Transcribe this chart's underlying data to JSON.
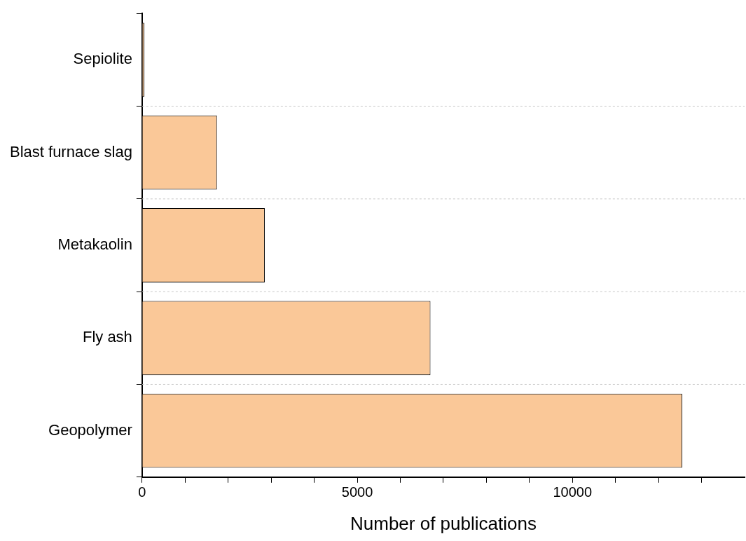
{
  "chart_data": {
    "type": "bar",
    "orientation": "horizontal",
    "xlabel": "Number of publications",
    "categories": [
      "Sepiolite",
      "Blast furnace slag",
      "Metakaolin",
      "Fly ash",
      "Geopolymer"
    ],
    "values": [
      50,
      1740,
      2850,
      6700,
      12550
    ],
    "color": "#fac898",
    "xlim": [
      0,
      14000
    ],
    "xticks": [
      0,
      {
        "value": 1000,
        "label": null
      },
      {
        "value": 2000,
        "label": null
      },
      {
        "value": 3000,
        "label": null
      },
      {
        "value": 4000,
        "label": null
      },
      5000,
      {
        "value": 6000,
        "label": null
      },
      {
        "value": 7000,
        "label": null
      },
      {
        "value": 8000,
        "label": null
      },
      {
        "value": 9000,
        "label": null
      },
      10000,
      {
        "value": 11000,
        "label": null
      },
      {
        "value": 12000,
        "label": null
      },
      {
        "value": 13000,
        "label": null
      }
    ],
    "grid": "y",
    "legend": false
  }
}
